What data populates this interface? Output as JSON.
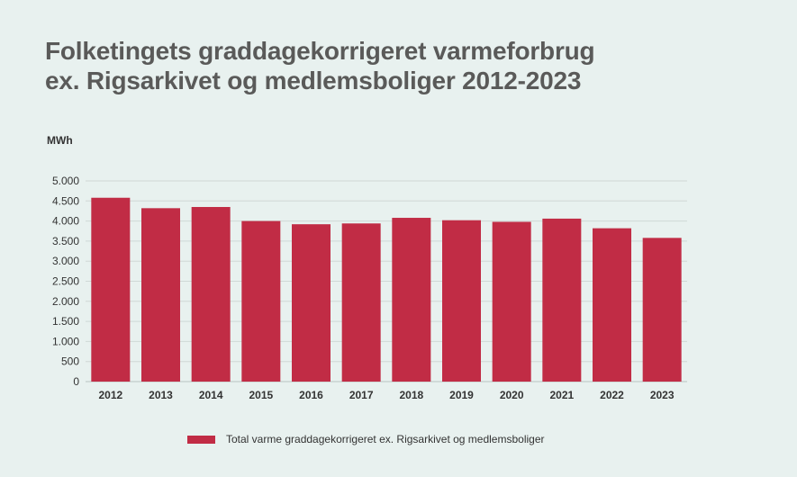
{
  "chart_data": {
    "type": "bar",
    "title_lines": [
      "Folketingets graddagekorrigeret varmeforbrug",
      "ex. Rigsarkivet og medlemsboliger 2012-2023"
    ],
    "ylabel": "MWh",
    "categories": [
      "2012",
      "2013",
      "2014",
      "2015",
      "2016",
      "2017",
      "2018",
      "2019",
      "2020",
      "2021",
      "2022",
      "2023"
    ],
    "series": [
      {
        "name": "Total varme graddagekorrigeret ex. Rigsarkivet og medlemsboliger",
        "values": [
          4580,
          4320,
          4350,
          4000,
          3920,
          3940,
          4080,
          4020,
          3980,
          4060,
          3820,
          3580
        ],
        "color": "#c12c45"
      }
    ],
    "ylim": [
      0,
      5000
    ],
    "yticks": [
      0,
      500,
      1000,
      1500,
      2000,
      2500,
      3000,
      3500,
      4000,
      4500,
      5000
    ],
    "ytick_labels": [
      "0",
      "500",
      "1.000",
      "1.500",
      "2.000",
      "2.500",
      "3.000",
      "3.500",
      "4.000",
      "4.500",
      "5.000"
    ],
    "grid": true,
    "legend_position": "bottom"
  }
}
